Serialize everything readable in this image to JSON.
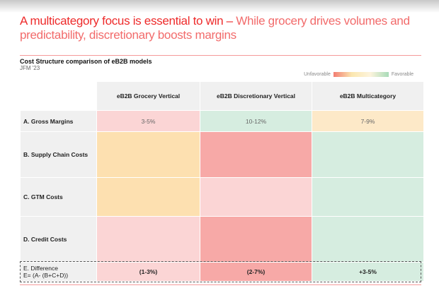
{
  "title_bold": "A multicategory focus is essential to win – ",
  "title_rest": "While grocery drives volumes and predictability, discretionary boosts margins",
  "subtitle": "Cost Structure comparison of eB2B models",
  "date": "JFM '23",
  "legend": {
    "low": "Unfavorable",
    "high": "Favorable"
  },
  "columns": [
    "eB2B Grocery Vertical",
    "eB2B Discretionary Vertical",
    "eB2B Multicategory"
  ],
  "rows": [
    {
      "label": "A. Gross Margins",
      "values": [
        "3-5%",
        "10-12%",
        "7-9%"
      ]
    },
    {
      "label": "B. Supply Chain Costs",
      "values": [
        "",
        "",
        ""
      ]
    },
    {
      "label": "C. GTM Costs",
      "values": [
        "",
        "",
        ""
      ]
    },
    {
      "label": "D. Credit Costs",
      "values": [
        "",
        "",
        ""
      ]
    },
    {
      "label": "E. Difference",
      "formula": "E= (A- (B+C+D))",
      "values": [
        "(1-3%)",
        "(2-7%)",
        "+3-5%"
      ]
    }
  ]
}
